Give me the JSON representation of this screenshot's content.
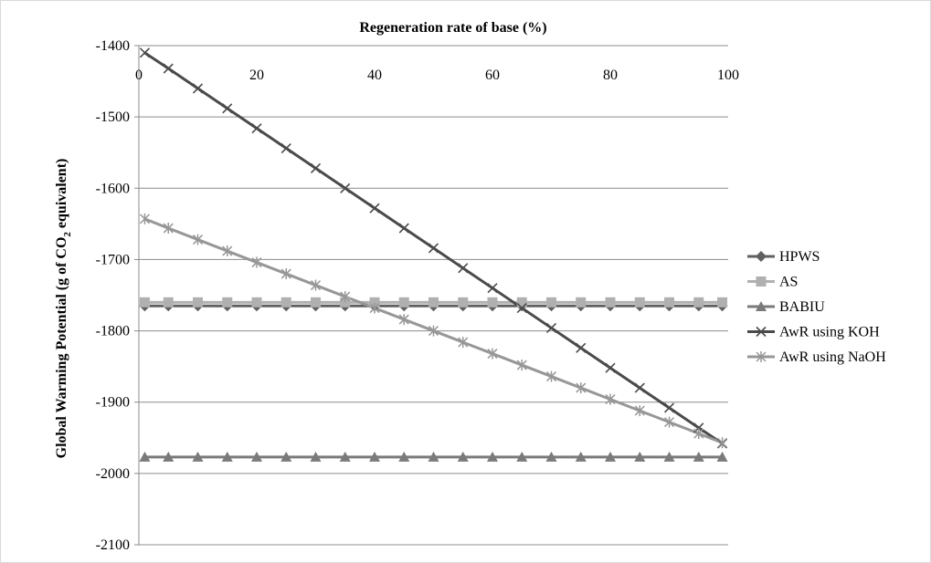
{
  "chart_data": {
    "type": "line",
    "title": "",
    "xlabel": "Regeneration rate of base (%)",
    "ylabel_parts": [
      "Global Warming Potential (g of CO",
      "2",
      " equivalent)"
    ],
    "xlim": [
      0,
      100
    ],
    "ylim": [
      -2100,
      -1400
    ],
    "x_ticks": [
      0,
      20,
      40,
      60,
      80,
      100
    ],
    "y_ticks": [
      -1400,
      -1500,
      -1600,
      -1700,
      -1800,
      -1900,
      -2000,
      -2100
    ],
    "x_axis_position": "top",
    "grid": "horizontal",
    "legend_position": "right",
    "x": [
      1,
      5,
      10,
      15,
      20,
      25,
      30,
      35,
      40,
      45,
      50,
      55,
      60,
      65,
      70,
      75,
      80,
      85,
      90,
      95,
      99
    ],
    "series": [
      {
        "name": "HPWS",
        "marker": "diamond",
        "color": "#606060",
        "values": [
          -1765,
          -1765,
          -1765,
          -1765,
          -1765,
          -1765,
          -1765,
          -1765,
          -1765,
          -1765,
          -1765,
          -1765,
          -1765,
          -1765,
          -1765,
          -1765,
          -1765,
          -1765,
          -1765,
          -1765,
          -1765
        ]
      },
      {
        "name": "AS",
        "marker": "square",
        "color": "#b0b0b0",
        "values": [
          -1760,
          -1760,
          -1760,
          -1760,
          -1760,
          -1760,
          -1760,
          -1760,
          -1760,
          -1760,
          -1760,
          -1760,
          -1760,
          -1760,
          -1760,
          -1760,
          -1760,
          -1760,
          -1760,
          -1760,
          -1760
        ]
      },
      {
        "name": "BABIU",
        "marker": "triangle",
        "color": "#7a7a7a",
        "values": [
          -1977,
          -1977,
          -1977,
          -1977,
          -1977,
          -1977,
          -1977,
          -1977,
          -1977,
          -1977,
          -1977,
          -1977,
          -1977,
          -1977,
          -1977,
          -1977,
          -1977,
          -1977,
          -1977,
          -1977,
          -1977
        ]
      },
      {
        "name": "AwR using KOH",
        "marker": "x",
        "color": "#4a4a4a",
        "values": [
          -1410,
          -1432,
          -1460,
          -1488,
          -1516,
          -1544,
          -1572,
          -1600,
          -1628,
          -1656,
          -1684,
          -1712,
          -1740,
          -1768,
          -1796,
          -1824,
          -1852,
          -1880,
          -1908,
          -1936,
          -1958
        ]
      },
      {
        "name": "AwR using NaOH",
        "marker": "star",
        "color": "#979797",
        "values": [
          -1643,
          -1656,
          -1672,
          -1688,
          -1704,
          -1720,
          -1736,
          -1752,
          -1768,
          -1784,
          -1800,
          -1816,
          -1832,
          -1848,
          -1864,
          -1880,
          -1896,
          -1912,
          -1928,
          -1944,
          -1957
        ]
      }
    ]
  }
}
